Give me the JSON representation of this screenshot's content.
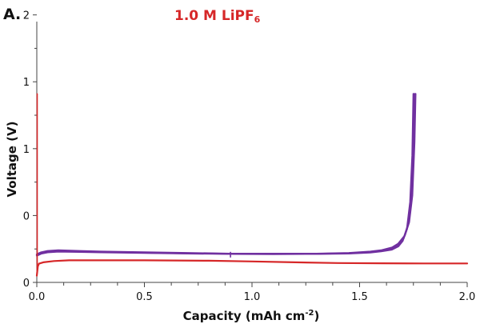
{
  "chart_data": {
    "type": "line",
    "panel_label": "A.",
    "title": "1.0 M LiPF",
    "title_subscript": "6",
    "xlabel": "Capacity (mAh cm",
    "xlabel_sup": "-2",
    "xlabel_close": ")",
    "ylabel": "Voltage (V)",
    "xlim": [
      0,
      2.0
    ],
    "ylim": [
      -0.45,
      1.5
    ],
    "x_ticks": [
      0.0,
      0.5,
      1.0,
      1.5,
      2.0
    ],
    "x_tick_labels": [
      "0.0",
      "0.5",
      "1.0",
      "1.5",
      "2.0"
    ],
    "y_ticks": [
      -0.45,
      0.05,
      0.55,
      1.05
    ],
    "y_tick_labels": [
      "0",
      "0",
      "1",
      "1"
    ],
    "y_tick_top_label": "2",
    "y_tick_top_value": 1.55,
    "grid": false,
    "colors": {
      "purple": "#7030a0",
      "red": "#d62728",
      "title": "#d62728"
    },
    "series": [
      {
        "color": "#7030a0",
        "x": [
          0.0,
          0.02,
          0.05,
          0.1,
          0.2,
          0.3,
          0.5,
          0.7,
          0.9,
          1.1,
          1.3,
          1.45,
          1.55,
          1.6,
          1.65,
          1.68,
          1.71,
          1.73,
          1.745,
          1.755,
          1.76
        ],
        "y": [
          -0.24,
          -0.225,
          -0.215,
          -0.21,
          -0.215,
          -0.22,
          -0.225,
          -0.23,
          -0.235,
          -0.235,
          -0.235,
          -0.23,
          -0.22,
          -0.21,
          -0.19,
          -0.16,
          -0.1,
          0.0,
          0.2,
          0.6,
          0.96
        ]
      },
      {
        "color": "#7030a0",
        "x": [
          0.0,
          0.02,
          0.05,
          0.1,
          0.2,
          0.3,
          0.5,
          0.7,
          0.9,
          1.1,
          1.3,
          1.45,
          1.55,
          1.6,
          1.65,
          1.68,
          1.705,
          1.725,
          1.74,
          1.75,
          1.755
        ],
        "y": [
          -0.245,
          -0.23,
          -0.22,
          -0.215,
          -0.218,
          -0.222,
          -0.228,
          -0.232,
          -0.236,
          -0.237,
          -0.236,
          -0.232,
          -0.224,
          -0.215,
          -0.2,
          -0.17,
          -0.12,
          -0.02,
          0.18,
          0.55,
          0.96
        ]
      },
      {
        "color": "#7030a0",
        "x": [
          0.0,
          0.02,
          0.05,
          0.1,
          0.2,
          0.3,
          0.5,
          0.7,
          0.9,
          1.1,
          1.3,
          1.45,
          1.55,
          1.6,
          1.65,
          1.68,
          1.7,
          1.72,
          1.735,
          1.745,
          1.75
        ],
        "y": [
          -0.25,
          -0.235,
          -0.225,
          -0.22,
          -0.222,
          -0.225,
          -0.23,
          -0.234,
          -0.237,
          -0.238,
          -0.237,
          -0.234,
          -0.227,
          -0.218,
          -0.205,
          -0.18,
          -0.14,
          -0.05,
          0.15,
          0.5,
          0.96
        ]
      },
      {
        "color": "#d62728",
        "x": [
          0.0,
          0.005,
          0.01,
          0.03,
          0.08,
          0.15,
          0.3,
          0.5,
          0.8,
          1.0,
          1.2,
          1.4,
          1.6,
          1.8,
          2.0
        ],
        "y": [
          -0.4,
          -0.33,
          -0.31,
          -0.3,
          -0.29,
          -0.285,
          -0.285,
          -0.285,
          -0.288,
          -0.293,
          -0.3,
          -0.305,
          -0.307,
          -0.308,
          -0.308
        ]
      },
      {
        "color": "#d62728",
        "x": [
          0.002,
          0.002
        ],
        "y": [
          0.96,
          -0.38
        ]
      },
      {
        "color": "#7030a0",
        "x": [
          0.9,
          0.9
        ],
        "y": [
          -0.225,
          -0.26
        ]
      }
    ]
  }
}
